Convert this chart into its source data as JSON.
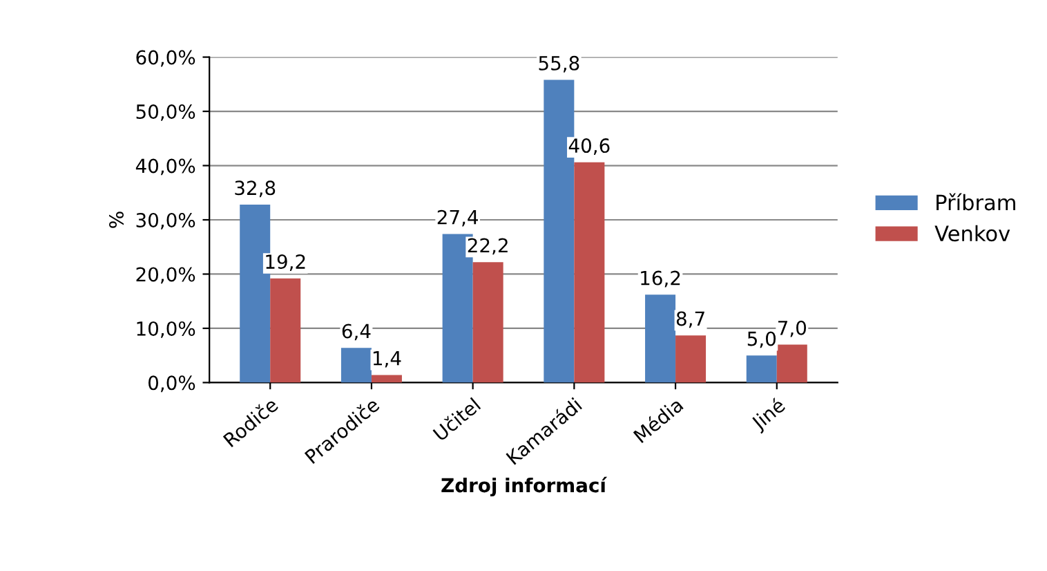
{
  "chart_data": {
    "type": "bar",
    "xlabel": "Zdroj informací",
    "ylabel": "%",
    "categories": [
      "Rodiče",
      "Prarodiče",
      "Učitel",
      "Kamarádi",
      "Média",
      "Jiné"
    ],
    "series": [
      {
        "name": "Příbram",
        "color": "#4f81bd",
        "values": [
          32.8,
          6.4,
          27.4,
          55.8,
          16.2,
          5.0
        ],
        "value_labels": [
          "32,8",
          "6,4",
          "27,4",
          "55,8",
          "16,2",
          "5,0"
        ]
      },
      {
        "name": "Venkov",
        "color": "#c0504d",
        "values": [
          19.2,
          1.4,
          22.2,
          40.6,
          8.7,
          7.0
        ],
        "value_labels": [
          "19,2",
          "1,4",
          "22,2",
          "40,6",
          "8,7",
          "7,0"
        ]
      }
    ],
    "ylim": [
      0,
      60
    ],
    "yticks": [
      {
        "value": 0,
        "label": "0,0%"
      },
      {
        "value": 10,
        "label": "10,0%"
      },
      {
        "value": 20,
        "label": "20,0%"
      },
      {
        "value": 30,
        "label": "30,0%"
      },
      {
        "value": 40,
        "label": "40,0%"
      },
      {
        "value": 50,
        "label": "50,0%"
      },
      {
        "value": 60,
        "label": "60,0%"
      }
    ],
    "grid": "y",
    "legend": "right"
  }
}
